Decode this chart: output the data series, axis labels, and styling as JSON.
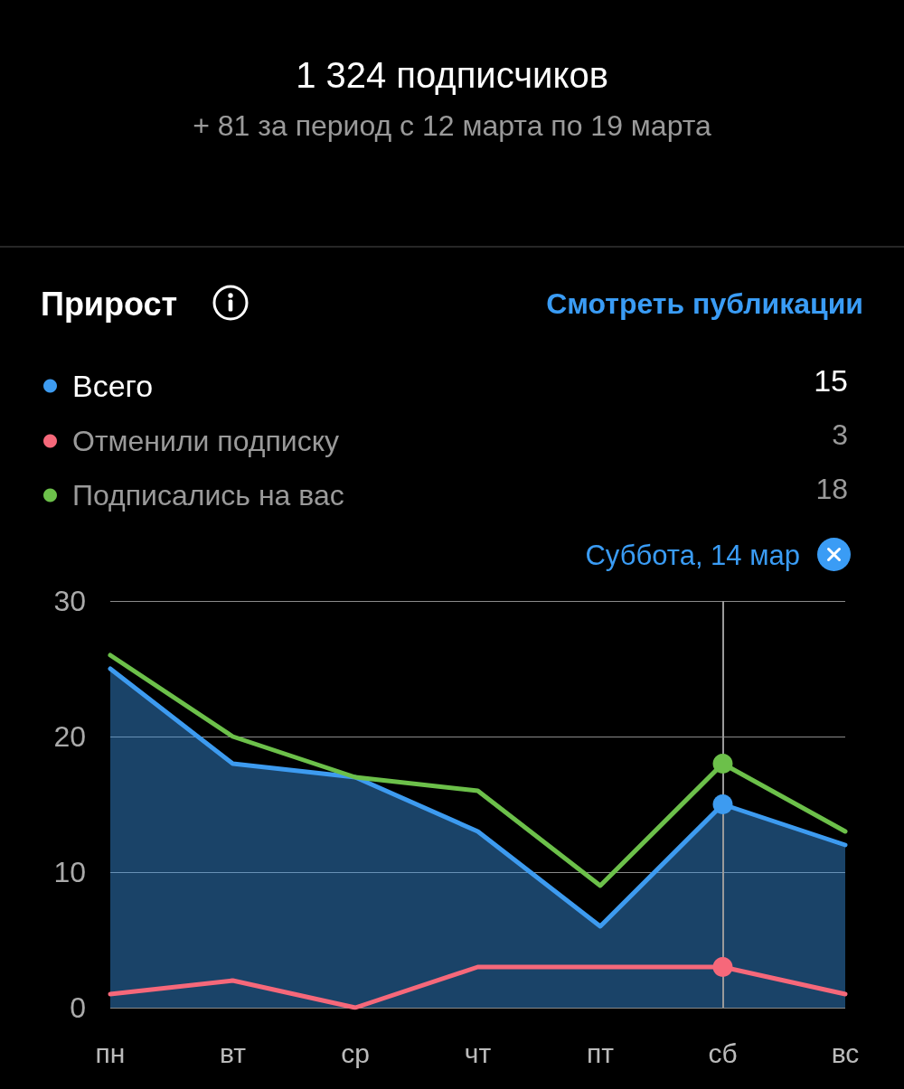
{
  "chart_data": {
    "type": "line",
    "title": "1 324 подписчиков",
    "subtitle": "+ 81 за период с 12 марта по 19 марта",
    "annotations": [
      "Прирост",
      "Смотреть публикации",
      "15",
      "3",
      "18"
    ],
    "categories": [
      "пн",
      "вт",
      "ср",
      "чт",
      "пт",
      "сб",
      "вс"
    ],
    "series": [
      {
        "name": "Всего",
        "type": "area",
        "color": "#3d9bf0",
        "values": [
          25,
          18,
          17,
          13,
          6,
          15,
          12
        ]
      },
      {
        "name": "Отменили подписку",
        "color": "#f6687a",
        "values": [
          1,
          2,
          0,
          3,
          3,
          3,
          1
        ]
      },
      {
        "name": "Подписались на вас",
        "color": "#6cc04a",
        "values": [
          26,
          20,
          17,
          16,
          9,
          18,
          13
        ]
      },
      {
        "type": "scatter",
        "x": [
          "сб"
        ],
        "values": [
          15
        ],
        "color": "#3d9bf0",
        "marker": "circle"
      },
      {
        "type": "scatter",
        "x": [
          "сб"
        ],
        "values": [
          3
        ],
        "color": "#f6687a",
        "marker": "circle"
      },
      {
        "type": "scatter",
        "x": [
          "сб"
        ],
        "values": [
          18
        ],
        "color": "#6cc04a",
        "marker": "circle"
      }
    ],
    "ylim": [
      0,
      30
    ],
    "yticks": [
      0,
      10,
      20,
      30
    ],
    "grid": "y",
    "legend": "top left",
    "ref_lines": [
      {
        "axis": "x",
        "value": "сб",
        "label": "Суббота, 14 мар",
        "color": "#9a9a9a"
      }
    ]
  }
}
